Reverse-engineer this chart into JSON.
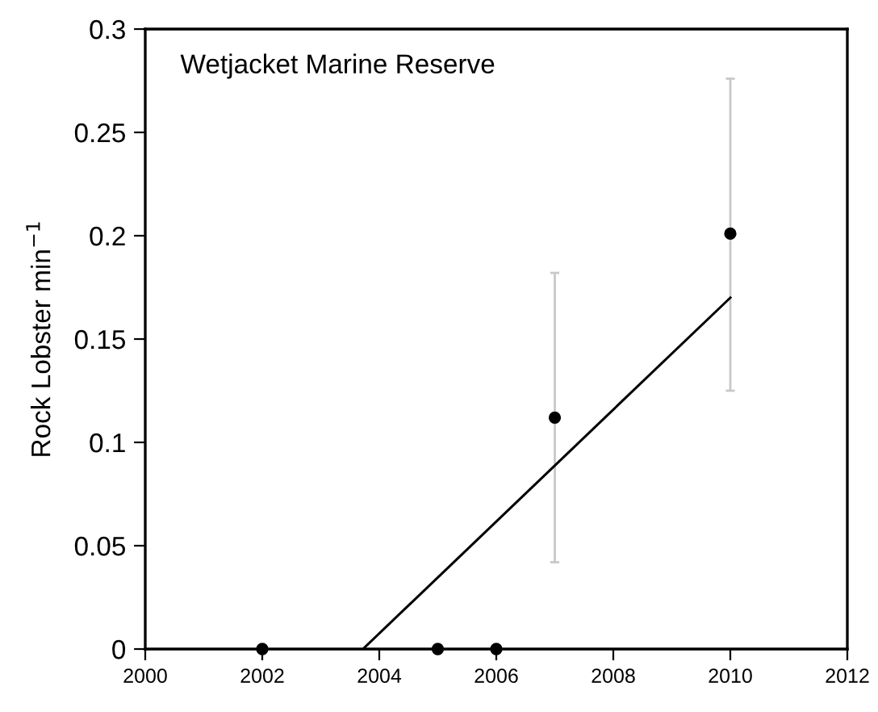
{
  "chart_data": {
    "type": "scatter",
    "ylabel": "Rock Lobster min$^{−1}$",
    "annotations": [
      "Wetjacket Marine Reserve"
    ],
    "series": [
      {
        "color": "#000000",
        "marker": "circle",
        "x": [
          2002,
          2005,
          2006,
          2007,
          2010
        ],
        "values": [
          0,
          0,
          0,
          0.112,
          0.201
        ],
        "errors": [
          null,
          null,
          null,
          [
            0.042,
            0.182
          ],
          [
            0.125,
            0.276
          ]
        ]
      },
      {
        "type": "line",
        "color": "#000000",
        "marker": "none",
        "x": [
          2003.72,
          2010
        ],
        "values": [
          0,
          0.17
        ]
      }
    ],
    "xlim": [
      2000,
      2012
    ],
    "xticks": [
      2000,
      2002,
      2004,
      2006,
      2008,
      2010,
      2012
    ],
    "ylim": [
      0,
      0.3
    ],
    "yticks": [
      0,
      0.05,
      0.1,
      0.15,
      0.2,
      0.25,
      0.3
    ],
    "grid": false,
    "legend": false
  }
}
